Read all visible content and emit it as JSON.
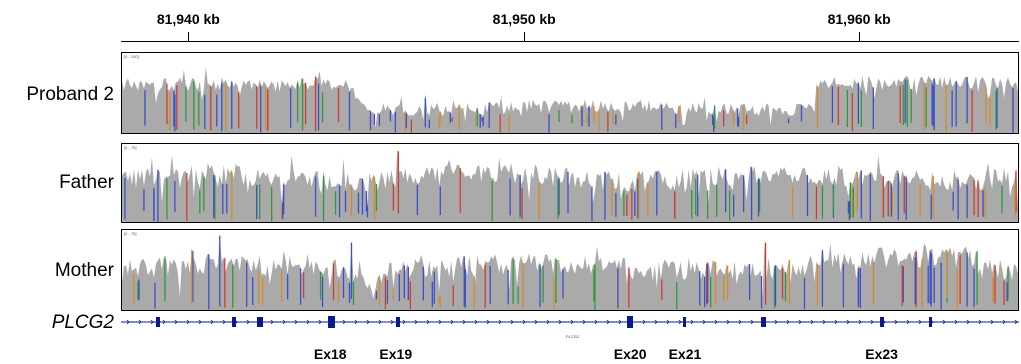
{
  "ruler": {
    "ticks": [
      {
        "label": "81,940 kb",
        "frac": 0.075
      },
      {
        "label": "81,950 kb",
        "frac": 0.449
      },
      {
        "label": "81,960 kb",
        "frac": 0.822
      }
    ]
  },
  "tracks": [
    {
      "key": "proband",
      "label": "Proband 2",
      "range": "[0 - 100]"
    },
    {
      "key": "father",
      "label": "Father",
      "range": "[0 - 75]"
    },
    {
      "key": "mother",
      "label": "Mother",
      "range": "[0 - 75]"
    }
  ],
  "gene": {
    "label": "PLCG2",
    "name": "PLCG2",
    "exons": [
      {
        "label": "Ex18",
        "frac": 0.233,
        "show_label": true
      },
      {
        "label": "Ex19",
        "frac": 0.306,
        "show_label": true
      },
      {
        "label": "Ex20",
        "frac": 0.567,
        "show_label": true
      },
      {
        "label": "Ex21",
        "frac": 0.628,
        "show_label": true
      },
      {
        "label": "Ex23",
        "frac": 0.847,
        "show_label": true
      }
    ]
  },
  "colors": {
    "coverage": "#aaaaaa",
    "mismatch_blue": "#3b4fc8",
    "mismatch_red": "#d23c2c",
    "mismatch_green": "#2f9a3a",
    "mismatch_orange": "#d88a28",
    "gene": "#0a1a8c"
  }
}
